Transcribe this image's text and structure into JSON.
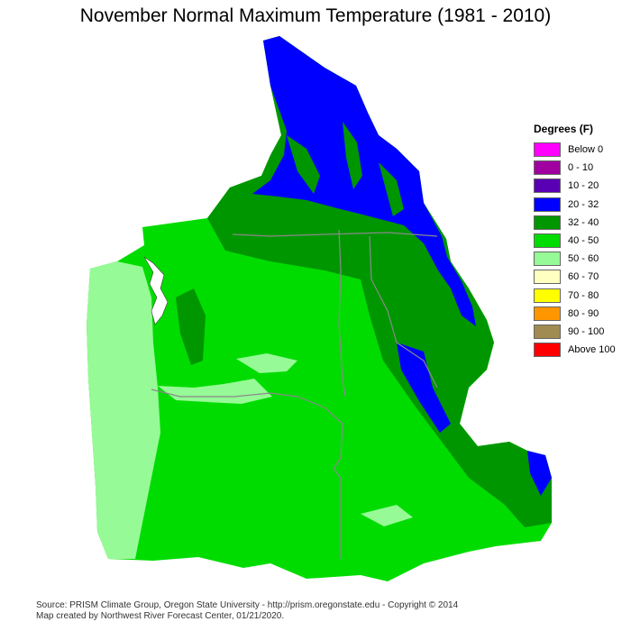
{
  "title": "November Normal Maximum Temperature (1981 - 2010)",
  "legend": {
    "title": "Degrees (F)",
    "items": [
      {
        "label": "Below 0",
        "color": "#ff00ff"
      },
      {
        "label": "0 - 10",
        "color": "#a000a0"
      },
      {
        "label": "10 - 20",
        "color": "#5a00b4"
      },
      {
        "label": "20 - 32",
        "color": "#0000ff"
      },
      {
        "label": "32 - 40",
        "color": "#009600"
      },
      {
        "label": "40 - 50",
        "color": "#00dc00"
      },
      {
        "label": "50 - 60",
        "color": "#96fa96"
      },
      {
        "label": "60 - 70",
        "color": "#ffffc0"
      },
      {
        "label": "70 - 80",
        "color": "#ffff00"
      },
      {
        "label": "80 - 90",
        "color": "#ff9600"
      },
      {
        "label": "90 - 100",
        "color": "#a08c50"
      },
      {
        "label": "Above 100",
        "color": "#ff0000"
      }
    ]
  },
  "footer": {
    "source": "Source: PRISM Climate Group, Oregon State University - http://prism.oregonstate.edu - Copyright © 2014",
    "credit": "Map created by Northwest River Forecast Center, 01/21/2020."
  }
}
